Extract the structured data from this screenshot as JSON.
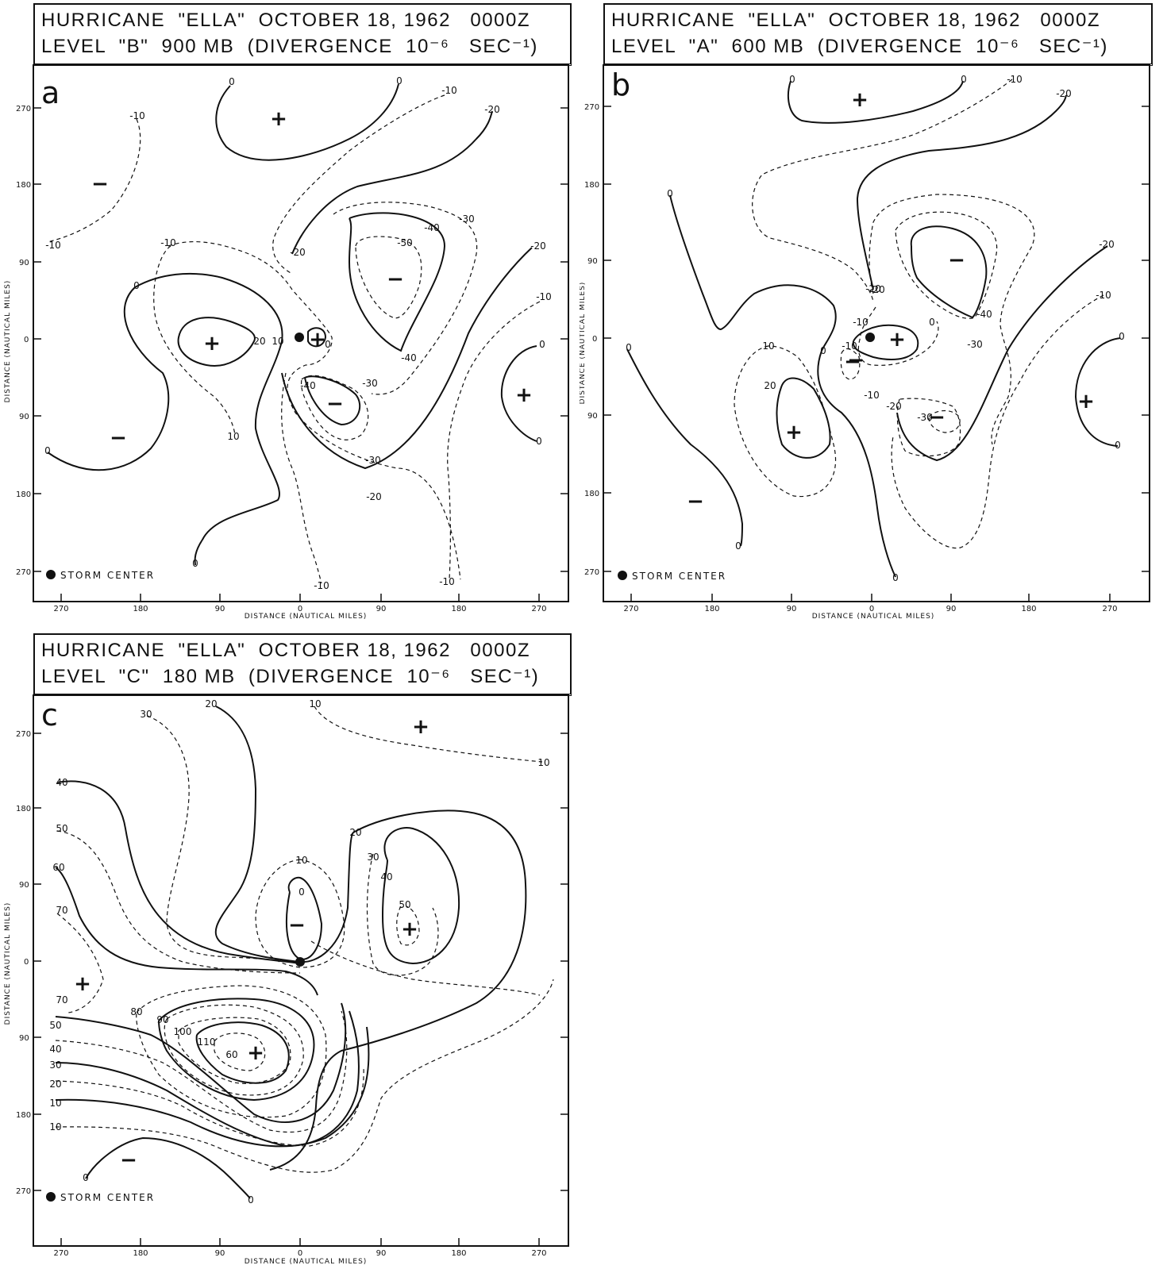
{
  "panels": [
    {
      "id": "a",
      "letter": "a",
      "header_line1": "HURRICANE  \"ELLA\"  OCTOBER 18, 1962   0000Z",
      "header_line2": "LEVEL  \"B\"  900 MB  (DIVERGENCE  10⁻⁶   SEC⁻¹)",
      "ylabel": "DISTANCE (NAUTICAL MILES)",
      "xlabel": "DISTANCE (NAUTICAL MILES)",
      "yticks": [
        "270",
        "180",
        "90",
        "0",
        "90",
        "180",
        "270"
      ],
      "xticks": [
        "270",
        "180",
        "90",
        "0",
        "90",
        "180",
        "270"
      ],
      "legend": "STORM CENTER",
      "contour_labels": [
        "0",
        "0",
        "-10",
        "-20",
        "-10",
        "-10",
        "-10",
        "-20",
        "-30",
        "-40",
        "-50",
        "-20",
        "-10",
        "0",
        "20",
        "10",
        "0",
        "-40",
        "-30",
        "-40",
        "-30",
        "-20",
        "10",
        "0",
        "0",
        "0",
        "-10",
        "-10",
        "0"
      ],
      "signs": [
        "+",
        "−",
        "+",
        "+",
        "−",
        "−",
        "−",
        "+"
      ]
    },
    {
      "id": "b",
      "letter": "b",
      "header_line1": "HURRICANE  \"ELLA\"  OCTOBER 18, 1962   0000Z",
      "header_line2": "LEVEL  \"A\"  600 MB  (DIVERGENCE  10⁻⁶   SEC⁻¹)",
      "ylabel": "DISTANCE (NAUTICAL MILES)",
      "xlabel": "DISTANCE (NAUTICAL MILES)",
      "yticks": [
        "270",
        "180",
        "90",
        "0",
        "90",
        "180",
        "270"
      ],
      "xticks": [
        "270",
        "180",
        "90",
        "0",
        "90",
        "180",
        "270"
      ],
      "legend": "STORM CENTER",
      "contour_labels": [
        "0",
        "0",
        "-10",
        "-20",
        "0",
        "-20",
        "-20",
        "-40",
        "-30",
        "-20",
        "-10",
        "-10",
        "0",
        "-10",
        "0",
        "10",
        "20",
        "0",
        "-10",
        "-20",
        "-30",
        "0",
        "0",
        "0",
        "0"
      ],
      "signs": [
        "+",
        "−",
        "+",
        "−",
        "+",
        "−",
        "−",
        "+",
        "−"
      ]
    },
    {
      "id": "c",
      "letter": "c",
      "header_line1": "HURRICANE  \"ELLA\"  OCTOBER 18, 1962   0000Z",
      "header_line2": "LEVEL  \"C\"  180 MB  (DIVERGENCE  10⁻⁶   SEC⁻¹)",
      "ylabel": "DISTANCE (NAUTICAL MILES)",
      "xlabel": "DISTANCE (NAUTICAL MILES)",
      "yticks": [
        "270",
        "180",
        "90",
        "0",
        "90",
        "180",
        "270"
      ],
      "xticks": [
        "270",
        "180",
        "90",
        "0",
        "90",
        "180",
        "270"
      ],
      "legend": "STORM CENTER",
      "contour_labels": [
        "20",
        "30",
        "10",
        "10",
        "40",
        "50",
        "60",
        "70",
        "20",
        "10",
        "0",
        "30",
        "40",
        "50",
        "70",
        "80",
        "90",
        "100",
        "110",
        "60",
        "50",
        "40",
        "30",
        "20",
        "10",
        "10",
        "0",
        "0"
      ],
      "signs": [
        "+",
        "−",
        "+",
        "+",
        "+",
        "−"
      ]
    }
  ]
}
